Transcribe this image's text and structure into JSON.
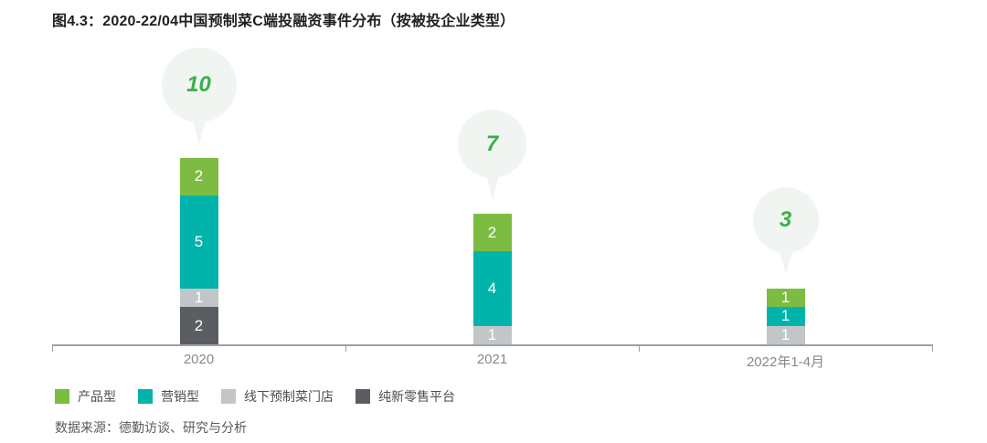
{
  "title": "图4.3：2020-22/04中国预制菜C端投融资事件分布（按被投企业类型）",
  "source": "数据来源：德勤访谈、研究与分析",
  "colors": {
    "product": "#7dbc42",
    "marketing": "#00b4ac",
    "offline_store": "#c3c6c8",
    "new_retail": "#5a5e62",
    "bubble_fill": "#f1f5f1",
    "bubble_text": "#3cae49",
    "axis": "#9da0a2"
  },
  "chart_data": {
    "type": "bar",
    "stacked": true,
    "title": "图4.3：2020-22/04中国预制菜C端投融资事件分布（按被投企业类型）",
    "xlabel": "",
    "ylabel": "",
    "grid": false,
    "legend_position": "bottom",
    "categories": [
      "2020",
      "2021",
      "2022年1-4月"
    ],
    "series": [
      {
        "name": "产品型",
        "color_key": "product",
        "values": [
          2,
          2,
          1
        ]
      },
      {
        "name": "营销型",
        "color_key": "marketing",
        "values": [
          5,
          4,
          1
        ]
      },
      {
        "name": "线下预制菜门店",
        "color_key": "offline_store",
        "values": [
          1,
          1,
          1
        ]
      },
      {
        "name": "纯新零售平台",
        "color_key": "new_retail",
        "values": [
          2,
          0,
          0
        ]
      }
    ],
    "totals": [
      10,
      7,
      3
    ]
  }
}
